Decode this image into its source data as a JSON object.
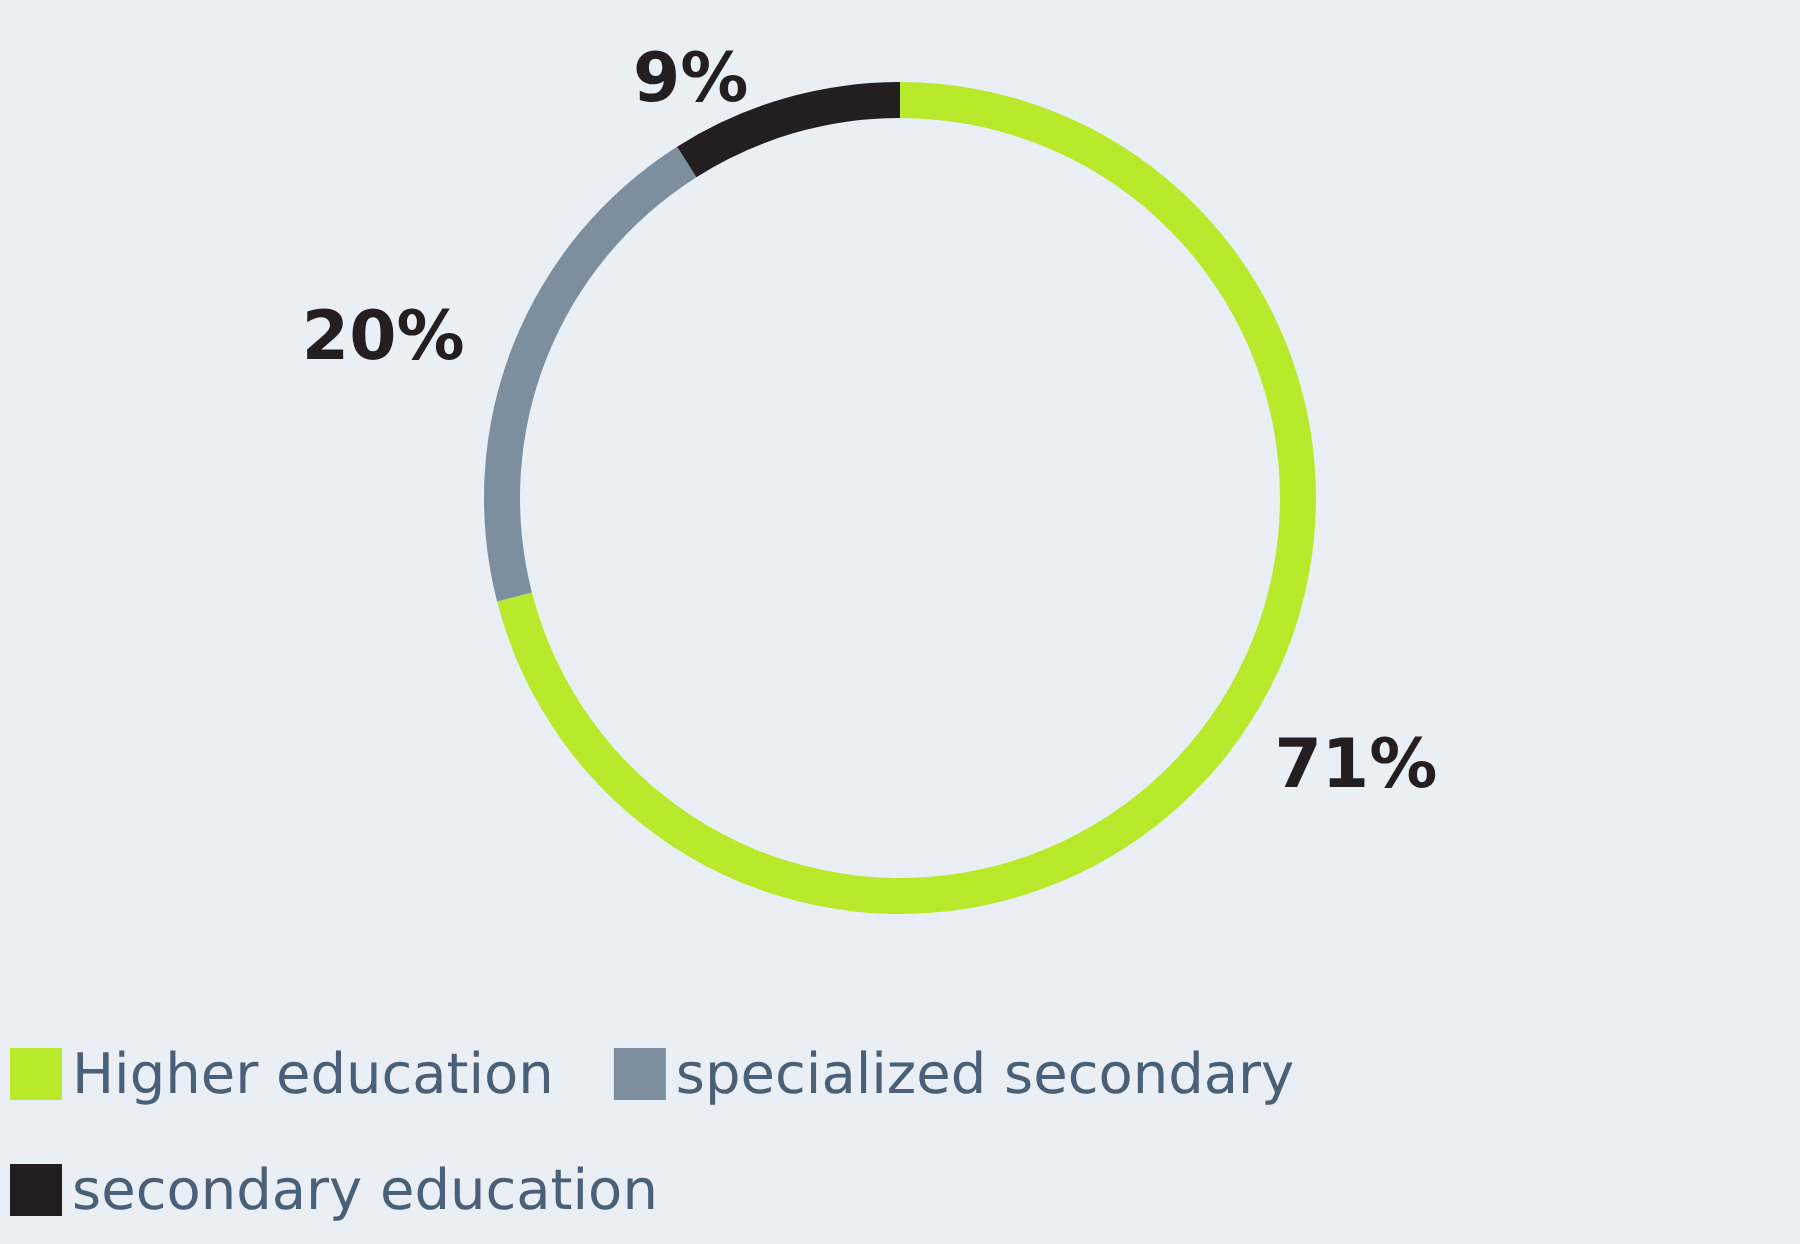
{
  "chart_data": {
    "type": "donut",
    "categories": [
      "Higher education",
      "specialized secondary",
      "secondary education"
    ],
    "values": [
      71,
      20,
      9
    ],
    "colors": [
      "#b8e92b",
      "#7d8f9e",
      "#231f20"
    ],
    "value_labels": [
      "71%",
      "20%",
      "9%"
    ],
    "legend": "bottom left"
  }
}
